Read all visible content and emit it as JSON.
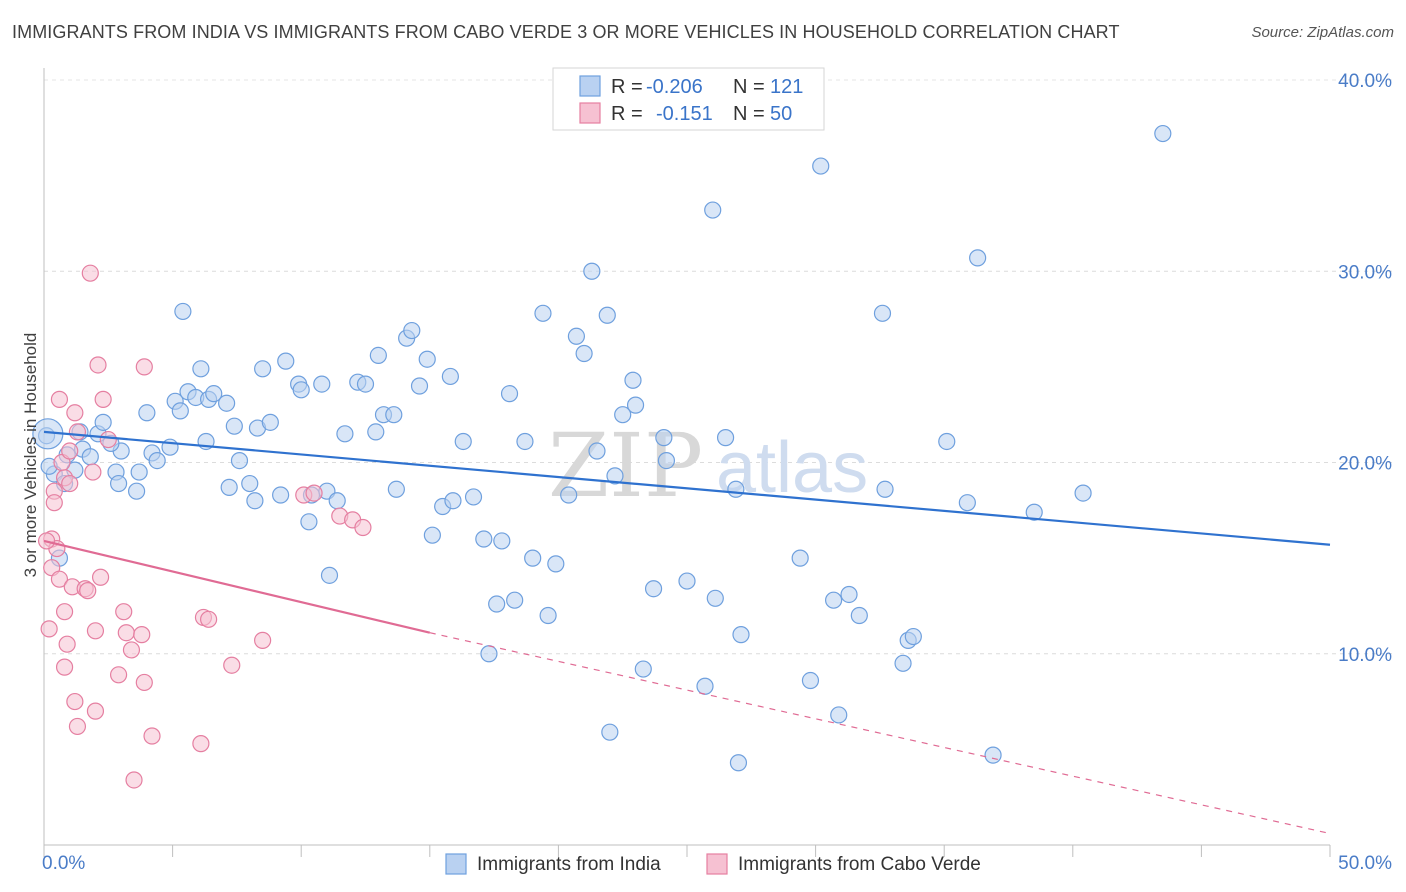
{
  "title": "IMMIGRANTS FROM INDIA VS IMMIGRANTS FROM CABO VERDE 3 OR MORE VEHICLES IN HOUSEHOLD CORRELATION CHART",
  "source": "Source: ZipAtlas.com",
  "colors": {
    "india": "#6fa0de",
    "india_fill": "#b9d1f1",
    "cabo": "#e57fa1",
    "cabo_fill": "#f6c1d2",
    "india_line": "#2f72cf",
    "cabo_line": "#e06b94"
  },
  "legend": {
    "r_label": "R =",
    "n_label": "N =",
    "india": {
      "r": "-0.206",
      "n": "121"
    },
    "cabo": {
      "r": "-0.151",
      "n": "50"
    }
  },
  "watermark": {
    "zip": "ZIP",
    "atlas": "atlas"
  },
  "chart_data": {
    "type": "scatter",
    "ylabel": "3 or more Vehicles in Household",
    "xlim": [
      0,
      50
    ],
    "ylim": [
      0,
      40
    ],
    "x_ticks": [
      "0.0%",
      "50.0%"
    ],
    "y_ticks": [
      {
        "value": 10,
        "label": "10.0%"
      },
      {
        "value": 20,
        "label": "20.0%"
      },
      {
        "value": 30,
        "label": "30.0%"
      },
      {
        "value": 40,
        "label": "40.0%"
      }
    ],
    "series": [
      {
        "name": "Immigrants from India",
        "trend": {
          "x0": 0,
          "y0": 21.6,
          "x1": 50,
          "y1": 15.7
        },
        "points": [
          [
            0.1,
            21.4
          ],
          [
            0.4,
            19.4
          ],
          [
            0.8,
            18.9
          ],
          [
            0.6,
            15.0
          ],
          [
            0.9,
            20.4
          ],
          [
            1.2,
            19.6
          ],
          [
            1.5,
            20.7
          ],
          [
            1.4,
            21.6
          ],
          [
            2.1,
            21.5
          ],
          [
            2.3,
            22.1
          ],
          [
            2.8,
            19.5
          ],
          [
            2.9,
            18.9
          ],
          [
            3.0,
            20.6
          ],
          [
            3.6,
            18.5
          ],
          [
            3.7,
            19.5
          ],
          [
            4.0,
            22.6
          ],
          [
            4.2,
            20.5
          ],
          [
            4.4,
            20.1
          ],
          [
            4.9,
            20.8
          ],
          [
            5.1,
            23.2
          ],
          [
            5.3,
            22.7
          ],
          [
            5.4,
            27.9
          ],
          [
            5.6,
            23.7
          ],
          [
            5.9,
            23.4
          ],
          [
            6.1,
            24.9
          ],
          [
            6.3,
            21.1
          ],
          [
            6.4,
            23.3
          ],
          [
            6.6,
            23.6
          ],
          [
            7.1,
            23.1
          ],
          [
            7.4,
            21.9
          ],
          [
            7.2,
            18.7
          ],
          [
            7.6,
            20.1
          ],
          [
            8.0,
            18.9
          ],
          [
            8.2,
            18.0
          ],
          [
            8.3,
            21.8
          ],
          [
            8.5,
            24.9
          ],
          [
            8.8,
            22.1
          ],
          [
            9.2,
            18.3
          ],
          [
            9.4,
            25.3
          ],
          [
            9.9,
            24.1
          ],
          [
            10.0,
            23.8
          ],
          [
            10.3,
            16.9
          ],
          [
            10.4,
            18.3
          ],
          [
            10.8,
            24.1
          ],
          [
            11.0,
            18.5
          ],
          [
            11.1,
            14.1
          ],
          [
            11.4,
            18.0
          ],
          [
            11.7,
            21.5
          ],
          [
            12.2,
            24.2
          ],
          [
            12.5,
            24.1
          ],
          [
            12.9,
            21.6
          ],
          [
            13.0,
            25.6
          ],
          [
            13.2,
            22.5
          ],
          [
            13.6,
            22.5
          ],
          [
            13.7,
            18.6
          ],
          [
            14.1,
            26.5
          ],
          [
            14.3,
            26.9
          ],
          [
            14.6,
            24.0
          ],
          [
            14.9,
            25.4
          ],
          [
            15.1,
            16.2
          ],
          [
            15.5,
            17.7
          ],
          [
            15.8,
            24.5
          ],
          [
            15.9,
            18.0
          ],
          [
            16.3,
            21.1
          ],
          [
            16.7,
            18.2
          ],
          [
            17.1,
            16.0
          ],
          [
            17.3,
            10.0
          ],
          [
            17.6,
            12.6
          ],
          [
            17.8,
            15.9
          ],
          [
            18.1,
            23.6
          ],
          [
            18.3,
            12.8
          ],
          [
            18.7,
            21.1
          ],
          [
            19.0,
            15.0
          ],
          [
            19.4,
            27.8
          ],
          [
            19.6,
            12.0
          ],
          [
            19.9,
            14.7
          ],
          [
            20.4,
            18.3
          ],
          [
            20.7,
            26.6
          ],
          [
            21.0,
            25.7
          ],
          [
            21.3,
            30.0
          ],
          [
            21.5,
            20.6
          ],
          [
            21.9,
            27.7
          ],
          [
            22.2,
            19.3
          ],
          [
            22.0,
            5.9
          ],
          [
            22.5,
            22.5
          ],
          [
            22.9,
            24.3
          ],
          [
            23.0,
            23.0
          ],
          [
            23.3,
            9.2
          ],
          [
            23.7,
            13.4
          ],
          [
            24.1,
            21.3
          ],
          [
            24.2,
            20.1
          ],
          [
            25.0,
            13.8
          ],
          [
            25.7,
            8.3
          ],
          [
            26.0,
            33.2
          ],
          [
            26.1,
            12.9
          ],
          [
            26.5,
            21.3
          ],
          [
            26.9,
            18.6
          ],
          [
            27.0,
            4.3
          ],
          [
            27.1,
            11.0
          ],
          [
            29.4,
            15.0
          ],
          [
            29.8,
            8.6
          ],
          [
            30.2,
            35.5
          ],
          [
            30.7,
            12.8
          ],
          [
            30.9,
            6.8
          ],
          [
            31.3,
            13.1
          ],
          [
            31.7,
            12.0
          ],
          [
            32.6,
            27.8
          ],
          [
            32.7,
            18.6
          ],
          [
            33.4,
            9.5
          ],
          [
            33.6,
            10.7
          ],
          [
            33.8,
            10.9
          ],
          [
            35.1,
            21.1
          ],
          [
            36.3,
            30.7
          ],
          [
            36.9,
            4.7
          ],
          [
            35.9,
            17.9
          ],
          [
            38.5,
            17.4
          ],
          [
            40.4,
            18.4
          ],
          [
            43.5,
            37.2
          ],
          [
            0.2,
            19.8
          ],
          [
            1.8,
            20.3
          ],
          [
            2.6,
            21.0
          ]
        ]
      },
      {
        "name": "Immigrants from Cabo Verde",
        "trend": {
          "x0": 0,
          "y0": 15.9,
          "x1": 15,
          "y1": 11.1
        },
        "trend_ext": {
          "x0": 15,
          "y0": 11.1,
          "x1": 50,
          "y1": 0.6
        },
        "points": [
          [
            0.2,
            11.3
          ],
          [
            0.3,
            16.0
          ],
          [
            0.3,
            14.5
          ],
          [
            0.4,
            18.5
          ],
          [
            0.4,
            17.9
          ],
          [
            0.5,
            15.5
          ],
          [
            0.6,
            13.9
          ],
          [
            0.6,
            23.3
          ],
          [
            0.7,
            20.0
          ],
          [
            0.8,
            19.2
          ],
          [
            0.8,
            12.2
          ],
          [
            0.9,
            10.5
          ],
          [
            0.8,
            9.3
          ],
          [
            1.0,
            18.9
          ],
          [
            1.1,
            13.5
          ],
          [
            1.2,
            22.6
          ],
          [
            1.3,
            21.6
          ],
          [
            1.2,
            7.5
          ],
          [
            1.3,
            6.2
          ],
          [
            1.6,
            13.4
          ],
          [
            1.7,
            13.3
          ],
          [
            1.8,
            29.9
          ],
          [
            2.0,
            11.2
          ],
          [
            2.0,
            7.0
          ],
          [
            2.1,
            25.1
          ],
          [
            2.2,
            14.0
          ],
          [
            2.3,
            23.3
          ],
          [
            2.5,
            21.2
          ],
          [
            2.9,
            8.9
          ],
          [
            3.1,
            12.2
          ],
          [
            3.2,
            11.1
          ],
          [
            3.4,
            10.2
          ],
          [
            3.5,
            3.4
          ],
          [
            3.8,
            11.0
          ],
          [
            3.9,
            8.5
          ],
          [
            3.9,
            25.0
          ],
          [
            4.2,
            5.7
          ],
          [
            6.1,
            5.3
          ],
          [
            6.2,
            11.9
          ],
          [
            6.4,
            11.8
          ],
          [
            7.3,
            9.4
          ],
          [
            8.5,
            10.7
          ],
          [
            10.1,
            18.3
          ],
          [
            10.5,
            18.4
          ],
          [
            11.5,
            17.2
          ],
          [
            12.0,
            17.0
          ],
          [
            12.4,
            16.6
          ],
          [
            0.1,
            15.9
          ],
          [
            1.0,
            20.6
          ],
          [
            1.9,
            19.5
          ]
        ]
      }
    ]
  }
}
